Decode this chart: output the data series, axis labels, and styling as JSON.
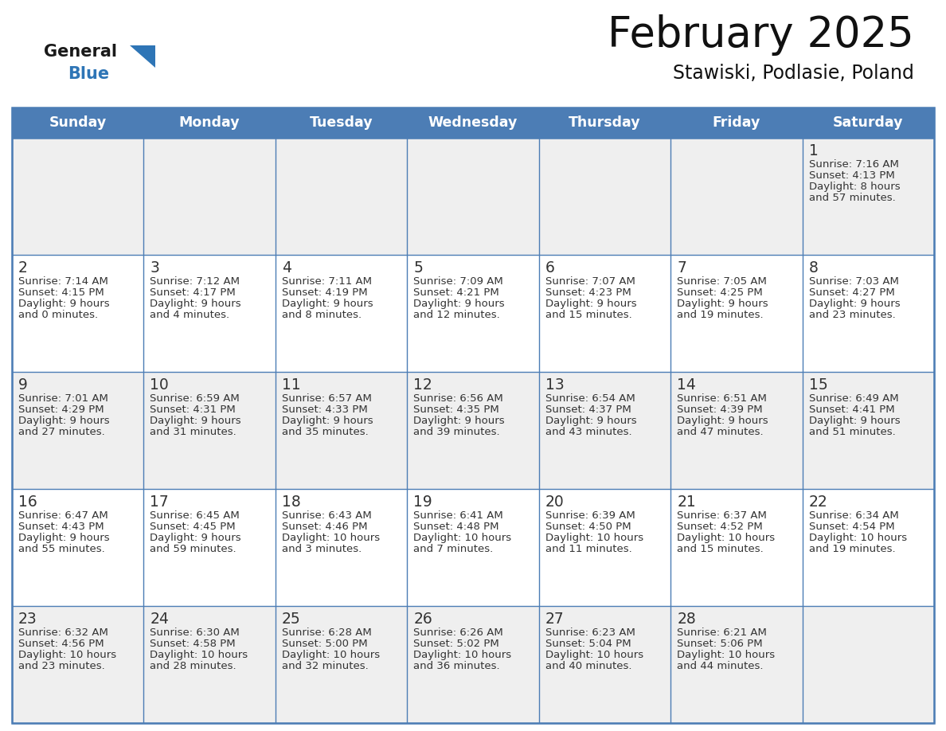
{
  "title": "February 2025",
  "subtitle": "Stawiski, Podlasie, Poland",
  "header_bg": "#4C7DB5",
  "header_text_color": "#FFFFFF",
  "header_days": [
    "Sunday",
    "Monday",
    "Tuesday",
    "Wednesday",
    "Thursday",
    "Friday",
    "Saturday"
  ],
  "row_bg_odd": "#EFEFEF",
  "row_bg_even": "#FFFFFF",
  "border_color": "#4C7DB5",
  "day_number_color": "#333333",
  "text_color": "#333333",
  "logo_general_color": "#1a1a1a",
  "logo_blue_color": "#2E75B6",
  "calendar_data": [
    {
      "day": 1,
      "col": 6,
      "row": 0,
      "sunrise": "7:16 AM",
      "sunset": "4:13 PM",
      "daylight_h": "8 hours",
      "daylight_m": "57 minutes."
    },
    {
      "day": 2,
      "col": 0,
      "row": 1,
      "sunrise": "7:14 AM",
      "sunset": "4:15 PM",
      "daylight_h": "9 hours",
      "daylight_m": "0 minutes."
    },
    {
      "day": 3,
      "col": 1,
      "row": 1,
      "sunrise": "7:12 AM",
      "sunset": "4:17 PM",
      "daylight_h": "9 hours",
      "daylight_m": "4 minutes."
    },
    {
      "day": 4,
      "col": 2,
      "row": 1,
      "sunrise": "7:11 AM",
      "sunset": "4:19 PM",
      "daylight_h": "9 hours",
      "daylight_m": "8 minutes."
    },
    {
      "day": 5,
      "col": 3,
      "row": 1,
      "sunrise": "7:09 AM",
      "sunset": "4:21 PM",
      "daylight_h": "9 hours",
      "daylight_m": "12 minutes."
    },
    {
      "day": 6,
      "col": 4,
      "row": 1,
      "sunrise": "7:07 AM",
      "sunset": "4:23 PM",
      "daylight_h": "9 hours",
      "daylight_m": "15 minutes."
    },
    {
      "day": 7,
      "col": 5,
      "row": 1,
      "sunrise": "7:05 AM",
      "sunset": "4:25 PM",
      "daylight_h": "9 hours",
      "daylight_m": "19 minutes."
    },
    {
      "day": 8,
      "col": 6,
      "row": 1,
      "sunrise": "7:03 AM",
      "sunset": "4:27 PM",
      "daylight_h": "9 hours",
      "daylight_m": "23 minutes."
    },
    {
      "day": 9,
      "col": 0,
      "row": 2,
      "sunrise": "7:01 AM",
      "sunset": "4:29 PM",
      "daylight_h": "9 hours",
      "daylight_m": "27 minutes."
    },
    {
      "day": 10,
      "col": 1,
      "row": 2,
      "sunrise": "6:59 AM",
      "sunset": "4:31 PM",
      "daylight_h": "9 hours",
      "daylight_m": "31 minutes."
    },
    {
      "day": 11,
      "col": 2,
      "row": 2,
      "sunrise": "6:57 AM",
      "sunset": "4:33 PM",
      "daylight_h": "9 hours",
      "daylight_m": "35 minutes."
    },
    {
      "day": 12,
      "col": 3,
      "row": 2,
      "sunrise": "6:56 AM",
      "sunset": "4:35 PM",
      "daylight_h": "9 hours",
      "daylight_m": "39 minutes."
    },
    {
      "day": 13,
      "col": 4,
      "row": 2,
      "sunrise": "6:54 AM",
      "sunset": "4:37 PM",
      "daylight_h": "9 hours",
      "daylight_m": "43 minutes."
    },
    {
      "day": 14,
      "col": 5,
      "row": 2,
      "sunrise": "6:51 AM",
      "sunset": "4:39 PM",
      "daylight_h": "9 hours",
      "daylight_m": "47 minutes."
    },
    {
      "day": 15,
      "col": 6,
      "row": 2,
      "sunrise": "6:49 AM",
      "sunset": "4:41 PM",
      "daylight_h": "9 hours",
      "daylight_m": "51 minutes."
    },
    {
      "day": 16,
      "col": 0,
      "row": 3,
      "sunrise": "6:47 AM",
      "sunset": "4:43 PM",
      "daylight_h": "9 hours",
      "daylight_m": "55 minutes."
    },
    {
      "day": 17,
      "col": 1,
      "row": 3,
      "sunrise": "6:45 AM",
      "sunset": "4:45 PM",
      "daylight_h": "9 hours",
      "daylight_m": "59 minutes."
    },
    {
      "day": 18,
      "col": 2,
      "row": 3,
      "sunrise": "6:43 AM",
      "sunset": "4:46 PM",
      "daylight_h": "10 hours",
      "daylight_m": "3 minutes."
    },
    {
      "day": 19,
      "col": 3,
      "row": 3,
      "sunrise": "6:41 AM",
      "sunset": "4:48 PM",
      "daylight_h": "10 hours",
      "daylight_m": "7 minutes."
    },
    {
      "day": 20,
      "col": 4,
      "row": 3,
      "sunrise": "6:39 AM",
      "sunset": "4:50 PM",
      "daylight_h": "10 hours",
      "daylight_m": "11 minutes."
    },
    {
      "day": 21,
      "col": 5,
      "row": 3,
      "sunrise": "6:37 AM",
      "sunset": "4:52 PM",
      "daylight_h": "10 hours",
      "daylight_m": "15 minutes."
    },
    {
      "day": 22,
      "col": 6,
      "row": 3,
      "sunrise": "6:34 AM",
      "sunset": "4:54 PM",
      "daylight_h": "10 hours",
      "daylight_m": "19 minutes."
    },
    {
      "day": 23,
      "col": 0,
      "row": 4,
      "sunrise": "6:32 AM",
      "sunset": "4:56 PM",
      "daylight_h": "10 hours",
      "daylight_m": "23 minutes."
    },
    {
      "day": 24,
      "col": 1,
      "row": 4,
      "sunrise": "6:30 AM",
      "sunset": "4:58 PM",
      "daylight_h": "10 hours",
      "daylight_m": "28 minutes."
    },
    {
      "day": 25,
      "col": 2,
      "row": 4,
      "sunrise": "6:28 AM",
      "sunset": "5:00 PM",
      "daylight_h": "10 hours",
      "daylight_m": "32 minutes."
    },
    {
      "day": 26,
      "col": 3,
      "row": 4,
      "sunrise": "6:26 AM",
      "sunset": "5:02 PM",
      "daylight_h": "10 hours",
      "daylight_m": "36 minutes."
    },
    {
      "day": 27,
      "col": 4,
      "row": 4,
      "sunrise": "6:23 AM",
      "sunset": "5:04 PM",
      "daylight_h": "10 hours",
      "daylight_m": "40 minutes."
    },
    {
      "day": 28,
      "col": 5,
      "row": 4,
      "sunrise": "6:21 AM",
      "sunset": "5:06 PM",
      "daylight_h": "10 hours",
      "daylight_m": "44 minutes."
    }
  ],
  "num_rows": 5,
  "num_cols": 7
}
